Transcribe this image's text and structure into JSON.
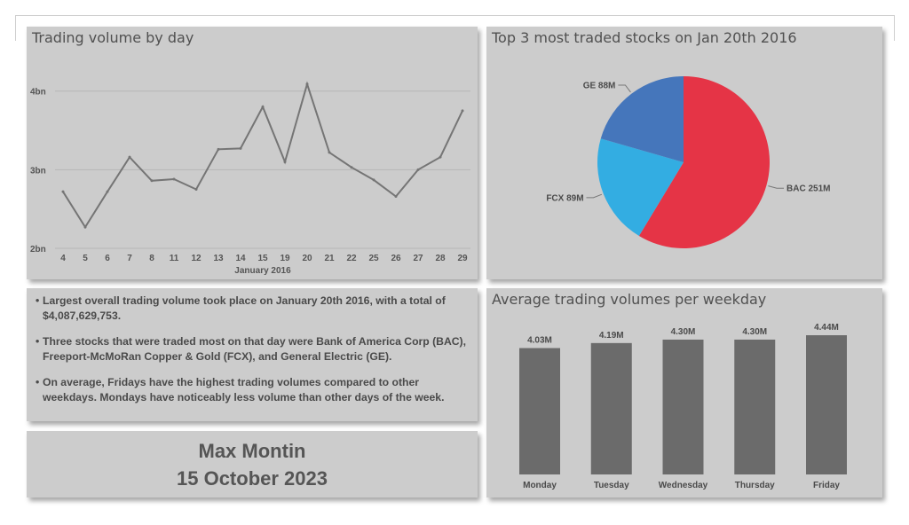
{
  "colors": {
    "panel_bg": "#cccccc",
    "line": "#757575",
    "bar": "#6b6b6b",
    "pie_bac": "#e53446",
    "pie_fcx": "#33ade2",
    "pie_ge": "#4576bb",
    "text": "#4a4a4a"
  },
  "line_panel": {
    "title": "Trading volume by day"
  },
  "pie_panel": {
    "title": "Top 3 most traded stocks on Jan 20th 2016"
  },
  "bar_panel": {
    "title": "Average trading volumes per weekday"
  },
  "notes": {
    "bullets": [
      "Largest overall trading volume took place on January 20th 2016, with a total of $4,087,629,753.",
      "Three stocks that were traded most on that day were Bank of America Corp (BAC), Freeport-McMoRan Copper & Gold (FCX), and General Electric (GE).",
      "On average, Fridays have the highest trading volumes compared to other weekdays. Mondays have noticeably less volume than other days of the week."
    ]
  },
  "author": {
    "name": "Max Montin",
    "date": "15 October 2023"
  },
  "chart_data": [
    {
      "type": "line",
      "title": "Trading volume by day",
      "xlabel": "January 2016",
      "ylabel": "",
      "x": [
        "4",
        "5",
        "6",
        "7",
        "8",
        "11",
        "12",
        "13",
        "14",
        "15",
        "19",
        "20",
        "21",
        "22",
        "25",
        "26",
        "27",
        "28",
        "29"
      ],
      "y": [
        2.72,
        2.27,
        2.72,
        3.16,
        2.86,
        2.88,
        2.75,
        3.26,
        3.27,
        3.8,
        3.1,
        4.09,
        3.22,
        3.03,
        2.87,
        2.66,
        3.0,
        3.16,
        3.75
      ],
      "unit": "bn",
      "ylim": [
        2,
        4.2
      ],
      "yticks": [
        {
          "value": 2,
          "label": "2bn"
        },
        {
          "value": 3,
          "label": "3bn"
        },
        {
          "value": 4,
          "label": "4bn"
        }
      ],
      "grid": true
    },
    {
      "type": "pie",
      "title": "Top 3 most traded stocks on Jan 20th 2016",
      "slices": [
        {
          "name": "BAC",
          "value": 251,
          "label": "BAC 251M",
          "color": "#e53446"
        },
        {
          "name": "FCX",
          "value": 89,
          "label": "FCX 89M",
          "color": "#33ade2"
        },
        {
          "name": "GE",
          "value": 88,
          "label": "GE 88M",
          "color": "#4576bb"
        }
      ],
      "unit": "M"
    },
    {
      "type": "bar",
      "title": "Average trading volumes per weekday",
      "categories": [
        "Monday",
        "Tuesday",
        "Wednesday",
        "Thursday",
        "Friday"
      ],
      "values": [
        4.03,
        4.19,
        4.3,
        4.3,
        4.44
      ],
      "labels": [
        "4.03M",
        "4.19M",
        "4.30M",
        "4.30M",
        "4.44M"
      ],
      "unit": "M",
      "ylim": [
        0,
        4.44
      ],
      "grid": false
    }
  ]
}
